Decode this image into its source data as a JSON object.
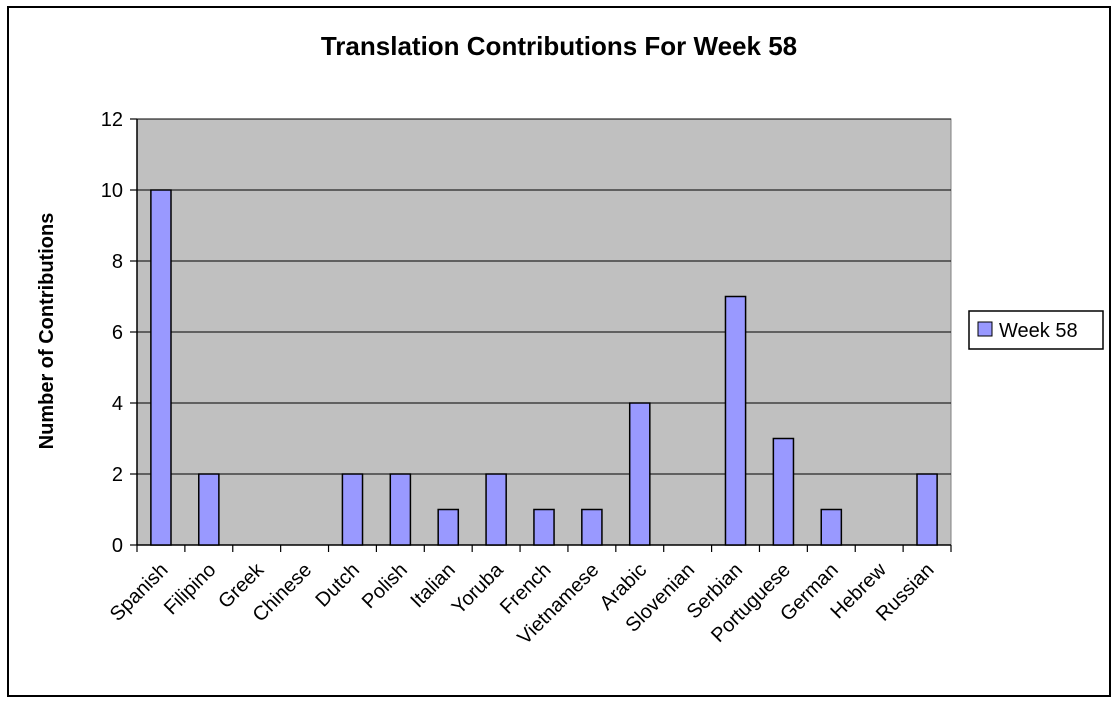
{
  "chart_data": {
    "type": "bar",
    "title": "Translation Contributions For Week 58",
    "xlabel": "",
    "ylabel": "Number of Contributions",
    "categories": [
      "Spanish",
      "Filipino",
      "Greek",
      "Chinese",
      "Dutch",
      "Polish",
      "Italian",
      "Yoruba",
      "French",
      "Vietnamese",
      "Arabic",
      "Slovenian",
      "Serbian",
      "Portuguese",
      "German",
      "Hebrew",
      "Russian"
    ],
    "series": [
      {
        "name": "Week 58",
        "values": [
          10,
          2,
          0,
          0,
          2,
          2,
          1,
          2,
          1,
          1,
          4,
          0,
          7,
          3,
          1,
          0,
          2
        ]
      }
    ],
    "ylim": [
      0,
      12
    ],
    "yticks": [
      0,
      2,
      4,
      6,
      8,
      10,
      12
    ],
    "grid": true,
    "legend_position": "right",
    "colors": {
      "bar_fill": "#9999ff",
      "bar_stroke": "#000000",
      "plot_background": "#c0c0c0",
      "gridline": "#000000",
      "frame": "#000000"
    }
  }
}
